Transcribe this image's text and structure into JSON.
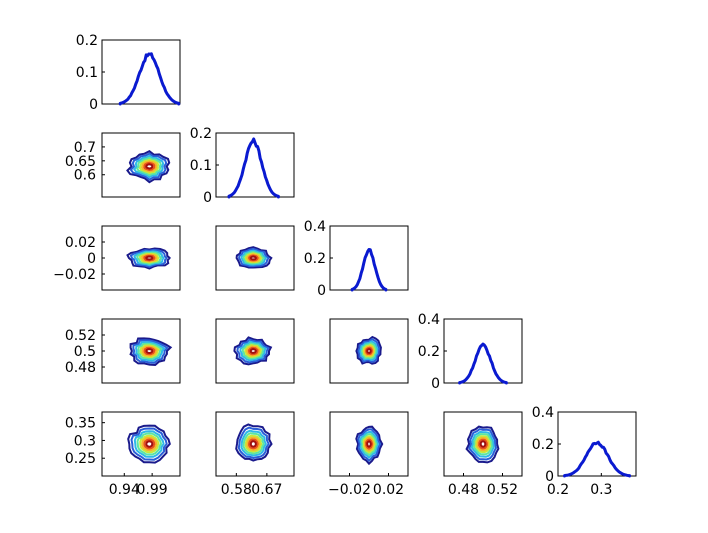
{
  "chart_data": {
    "type": "corner-plot",
    "colors": {
      "density_line": "#0a1ad0",
      "contour_levels": [
        "#1a1a8c",
        "#2a5fd8",
        "#2fb8e8",
        "#5ee6a0",
        "#c8e83a",
        "#f8b42c",
        "#e8521c",
        "#a01010"
      ]
    },
    "parameters": [
      {
        "ticks": [
          0.94,
          0.99
        ],
        "tick_labels": [
          "0.94",
          "0.99"
        ],
        "range": [
          0.9,
          1.04
        ],
        "center": 0.985,
        "sigma": 0.018
      },
      {
        "ticks": [
          0.6,
          0.65,
          0.7
        ],
        "x_tick_labels": [
          "0.58",
          "0.67"
        ],
        "x_ticks": [
          0.58,
          0.67
        ],
        "y_tick_labels": [
          "0.6",
          "0.65",
          "0.7"
        ],
        "range": [
          0.52,
          0.75
        ],
        "center": 0.63,
        "sigma": 0.025
      },
      {
        "ticks": [
          -0.02,
          0,
          0.02
        ],
        "tick_labels": [
          "−0.02",
          "0",
          "0.02"
        ],
        "x_ticks": [
          -0.02,
          0.02
        ],
        "x_tick_labels": [
          "−0.02",
          "0.02"
        ],
        "range": [
          -0.04,
          0.04
        ],
        "center": 0.0,
        "sigma": 0.006
      },
      {
        "ticks": [
          0.48,
          0.5,
          0.52
        ],
        "tick_labels": [
          "0.48",
          "0.5",
          "0.52"
        ],
        "x_ticks": [
          0.48,
          0.52
        ],
        "x_tick_labels": [
          "0.48",
          "0.52"
        ],
        "range": [
          0.46,
          0.54
        ],
        "center": 0.5,
        "sigma": 0.008
      },
      {
        "ticks": [
          0.25,
          0.3,
          0.35
        ],
        "tick_labels": [
          "0.25",
          "0.3",
          "0.35"
        ],
        "x_ticks": [
          0.2,
          0.3
        ],
        "x_tick_labels": [
          "0.2",
          "0.3"
        ],
        "range": [
          0.2,
          0.38
        ],
        "center": 0.29,
        "sigma": 0.025
      }
    ],
    "diagonal_ylim": [
      {
        "ylim": [
          0,
          0.2
        ],
        "ticks": [
          0,
          0.1,
          0.2
        ],
        "tick_labels": [
          "0",
          "0.1",
          "0.2"
        ],
        "peak": 0.155
      },
      {
        "ylim": [
          0,
          0.2
        ],
        "ticks": [
          0,
          0.1,
          0.2
        ],
        "tick_labels": [
          "0",
          "0.1",
          "0.2"
        ],
        "peak": 0.175
      },
      {
        "ylim": [
          0,
          0.4
        ],
        "ticks": [
          0,
          0.2,
          0.4
        ],
        "tick_labels": [
          "0",
          "0.2",
          "0.4"
        ],
        "peak": 0.25
      },
      {
        "ylim": [
          0,
          0.4
        ],
        "ticks": [
          0,
          0.2,
          0.4
        ],
        "tick_labels": [
          "0",
          "0.2",
          "0.4"
        ],
        "peak": 0.235
      },
      {
        "ylim": [
          0,
          0.4
        ],
        "ticks": [
          0,
          0.2,
          0.4
        ],
        "tick_labels": [
          "0",
          "0.2",
          "0.4"
        ],
        "peak": 0.21
      }
    ]
  }
}
